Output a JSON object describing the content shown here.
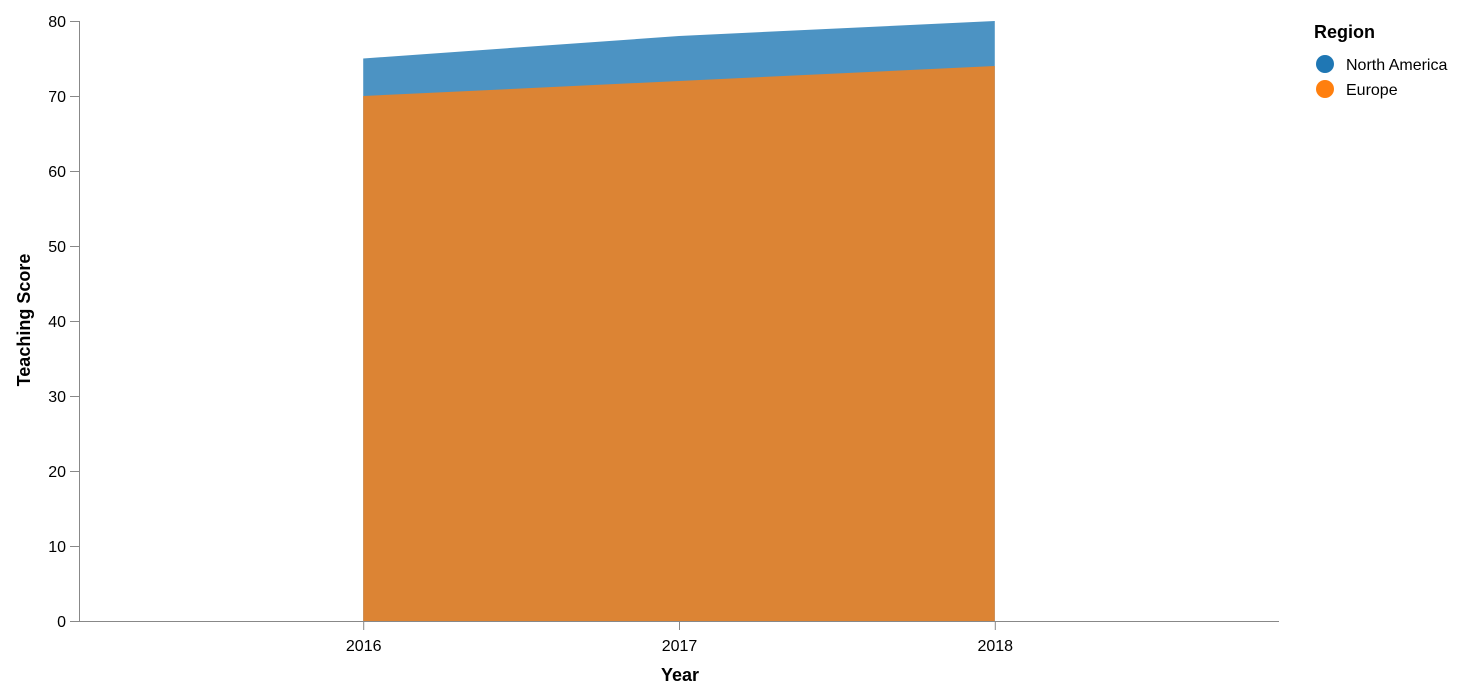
{
  "chart_data": {
    "type": "area",
    "stacked": false,
    "x": [
      2016,
      2017,
      2018
    ],
    "series": [
      {
        "name": "North America",
        "values": [
          75,
          78,
          80
        ],
        "color": "#4c93c3"
      },
      {
        "name": "Europe",
        "values": [
          70,
          72,
          74
        ],
        "color": "#dc8434"
      }
    ],
    "xlabel": "Year",
    "ylabel": "Teaching Score",
    "xlim": [
      2015.1,
      2018.9
    ],
    "ylim": [
      0,
      80
    ],
    "y_ticks": [
      0,
      10,
      20,
      30,
      40,
      50,
      60,
      70,
      80
    ],
    "x_ticks": [
      "2016",
      "2017",
      "2018"
    ],
    "grid": false,
    "legend": {
      "title": "Region",
      "placement": "top-right",
      "items": [
        {
          "label": "North America",
          "color": "#1f77b4"
        },
        {
          "label": "Europe",
          "color": "#ff7f0e"
        }
      ]
    }
  }
}
